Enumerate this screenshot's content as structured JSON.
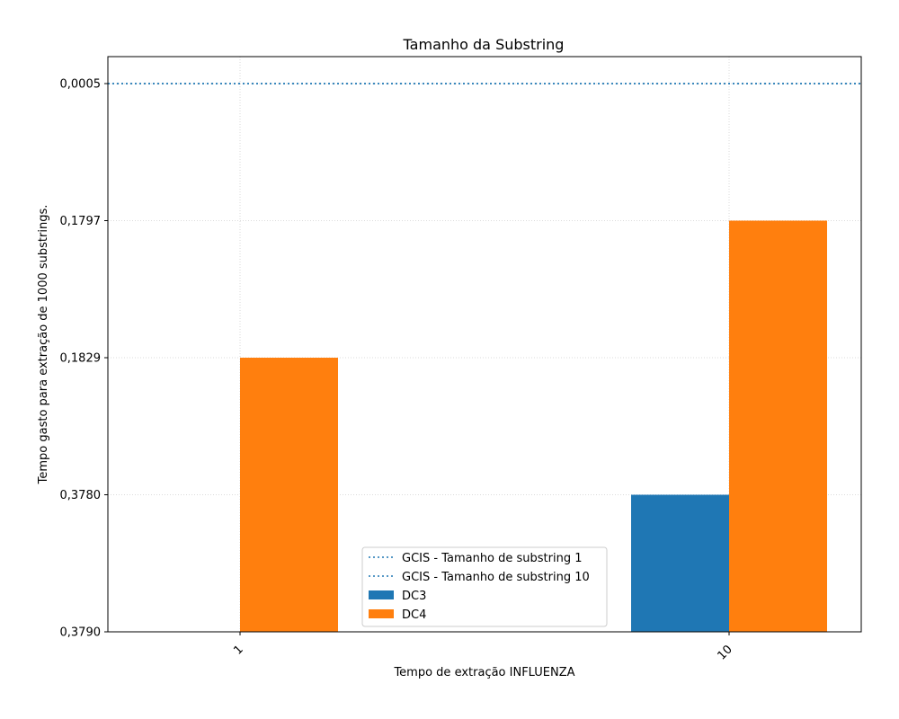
{
  "chart_data": {
    "type": "bar",
    "title": "Tamanho da Substring",
    "xlabel": "Tempo de extração INFLUENZA",
    "ylabel": "Tempo gasto para extração de 1000 substrings.",
    "categories": [
      "1",
      "10"
    ],
    "y_tick_labels": [
      "0,3790",
      "0,3780",
      "0,1829",
      "0,1797",
      "0,0005"
    ],
    "grid": true,
    "legend_placement": "lower center",
    "reference_lines": [
      {
        "name": "GCIS - Tamanho de substring 1",
        "tick_level": 4,
        "style": "dotted",
        "color": "#1f77b4"
      },
      {
        "name": "GCIS - Tamanho de substring 10",
        "tick_level": 4,
        "style": "dotted",
        "color": "#1f77b4"
      }
    ],
    "series": [
      {
        "name": "DC3",
        "color": "#1f77b4",
        "tick_levels": [
          0,
          1
        ]
      },
      {
        "name": "DC4",
        "color": "#ff7f0e",
        "tick_levels": [
          2,
          3
        ]
      }
    ]
  }
}
